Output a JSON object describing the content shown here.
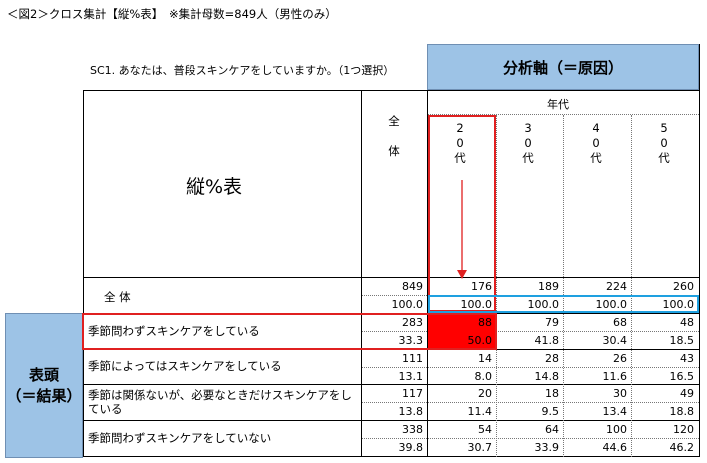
{
  "caption": "＜図2＞クロス集計【縦%表】　※集計母数=849人（男性のみ）",
  "question": "SC1. あなたは、普段スキンケアをしていますか。（1つ選択）",
  "axis_header": "分析軸（＝原因）",
  "table_title": "縦%表",
  "total_col_label": [
    "全",
    "体"
  ],
  "age_group_label": "年代",
  "age_columns": [
    [
      "2",
      "0",
      "代"
    ],
    [
      "3",
      "0",
      "代"
    ],
    [
      "4",
      "0",
      "代"
    ],
    [
      "5",
      "0",
      "代"
    ]
  ],
  "total_row_label": "全 体",
  "side_header": [
    "表頭",
    "（＝結果）"
  ],
  "total_row": {
    "counts": [
      "849",
      "176",
      "189",
      "224",
      "260"
    ],
    "pcts": [
      "100.0",
      "100.0",
      "100.0",
      "100.0",
      "100.0"
    ]
  },
  "rows": [
    {
      "label": "季節問わずスキンケアをしている",
      "counts": [
        "283",
        "88",
        "79",
        "68",
        "48"
      ],
      "pcts": [
        "33.3",
        "50.0",
        "41.8",
        "30.4",
        "18.5"
      ]
    },
    {
      "label": "季節によってはスキンケアをしている",
      "counts": [
        "111",
        "14",
        "28",
        "26",
        "43"
      ],
      "pcts": [
        "13.1",
        "8.0",
        "14.8",
        "11.6",
        "16.5"
      ]
    },
    {
      "label": "季節は関係ないが、必要なときだけスキンケアをしている",
      "counts": [
        "117",
        "20",
        "18",
        "30",
        "49"
      ],
      "pcts": [
        "13.8",
        "11.4",
        "9.5",
        "13.4",
        "18.8"
      ]
    },
    {
      "label": "季節問わずスキンケアをしていない",
      "counts": [
        "338",
        "54",
        "64",
        "100",
        "120"
      ],
      "pcts": [
        "39.8",
        "30.7",
        "33.9",
        "44.6",
        "46.2"
      ]
    }
  ],
  "colors": {
    "header_blue": "#9dc3e6",
    "highlight_red": "#ff0000",
    "outline_blue": "#1ea0e0"
  }
}
